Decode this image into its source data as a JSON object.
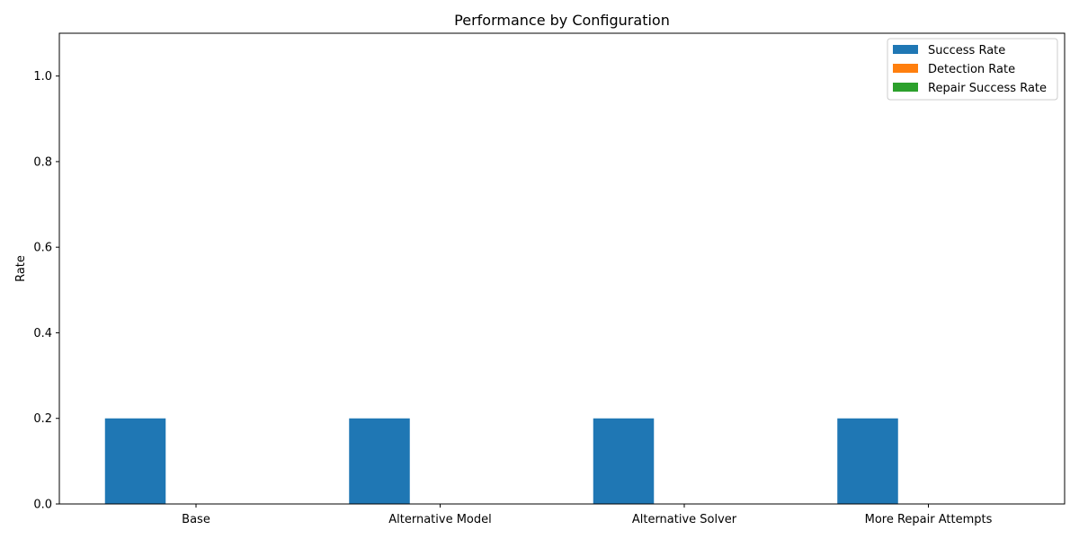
{
  "chart_data": {
    "type": "bar",
    "title": "Performance by Configuration",
    "xlabel": "",
    "ylabel": "Rate",
    "ylim": [
      0,
      1.1
    ],
    "yticks": [
      "0.0",
      "0.2",
      "0.4",
      "0.6",
      "0.8",
      "1.0"
    ],
    "categories": [
      "Base",
      "Alternative Model",
      "Alternative Solver",
      "More Repair Attempts"
    ],
    "series": [
      {
        "name": "Success Rate",
        "values": [
          0.2,
          0.2,
          0.2,
          0.2
        ],
        "color": "#1f77b4"
      },
      {
        "name": "Detection Rate",
        "values": [
          0.0,
          0.0,
          0.0,
          0.0
        ],
        "color": "#ff7f0e"
      },
      {
        "name": "Repair Success Rate",
        "values": [
          0.0,
          0.0,
          0.0,
          0.0
        ],
        "color": "#2ca02c"
      }
    ],
    "grid": false,
    "legend_position": "top-right"
  }
}
